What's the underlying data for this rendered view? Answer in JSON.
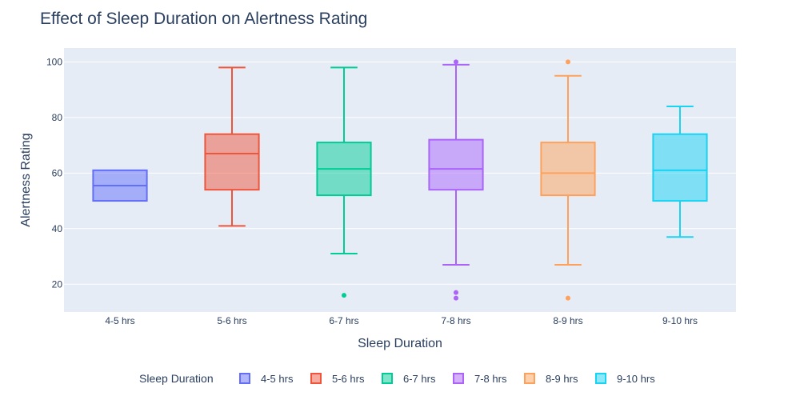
{
  "chart_data": {
    "type": "box",
    "title": "Effect of Sleep Duration on Alertness Rating",
    "xlabel": "Sleep Duration",
    "ylabel": "Alertness Rating",
    "ylim": [
      10,
      105
    ],
    "yticks": [
      20,
      40,
      60,
      80,
      100
    ],
    "grid": true,
    "legend": {
      "title": "Sleep Duration",
      "placement": "bottom"
    },
    "categories": [
      "4-5 hrs",
      "5-6 hrs",
      "6-7 hrs",
      "7-8 hrs",
      "8-9 hrs",
      "9-10 hrs"
    ],
    "series": [
      {
        "name": "4-5 hrs",
        "color": "#636efa",
        "fill": "rgba(99,110,250,0.5)",
        "min": 50,
        "q1": 50,
        "median": 55.5,
        "q3": 61,
        "max": 61,
        "outliers": []
      },
      {
        "name": "5-6 hrs",
        "color": "#ef553b",
        "fill": "rgba(239,85,59,0.5)",
        "min": 41,
        "q1": 54,
        "median": 67,
        "q3": 74,
        "max": 98,
        "outliers": []
      },
      {
        "name": "6-7 hrs",
        "color": "#00cc96",
        "fill": "rgba(0,204,150,0.5)",
        "min": 31,
        "q1": 52,
        "median": 61.5,
        "q3": 71,
        "max": 98,
        "outliers": [
          16
        ]
      },
      {
        "name": "7-8 hrs",
        "color": "#ab63fa",
        "fill": "rgba(171,99,250,0.5)",
        "min": 27,
        "q1": 54,
        "median": 61.5,
        "q3": 72,
        "max": 99,
        "outliers": [
          100,
          17,
          15
        ]
      },
      {
        "name": "8-9 hrs",
        "color": "#ffa15a",
        "fill": "rgba(255,161,90,0.5)",
        "min": 27,
        "q1": 52,
        "median": 60,
        "q3": 71,
        "max": 95,
        "outliers": [
          100,
          15
        ]
      },
      {
        "name": "9-10 hrs",
        "color": "#19d3f3",
        "fill": "rgba(25,211,243,0.5)",
        "min": 37,
        "q1": 50,
        "median": 61,
        "q3": 74,
        "max": 84,
        "outliers": []
      }
    ]
  }
}
